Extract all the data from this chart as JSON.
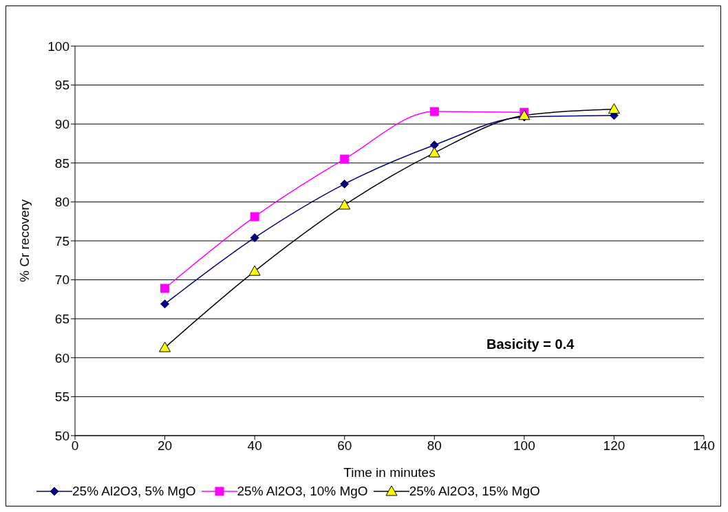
{
  "chart_data": {
    "type": "line",
    "xlabel": "Time in minutes",
    "ylabel": "% Cr recovery",
    "x": [
      20,
      40,
      60,
      80,
      100,
      120
    ],
    "series": [
      {
        "name": "25% Al2O3, 5% MgO",
        "color": "#000080",
        "marker": "diamond",
        "values": [
          66.9,
          75.4,
          82.3,
          87.3,
          90.9,
          91.1
        ]
      },
      {
        "name": "25% Al2O3, 10% MgO",
        "color": "#ff00ff",
        "marker": "square",
        "values": [
          68.9,
          78.1,
          85.5,
          91.6,
          91.5,
          null
        ]
      },
      {
        "name": "25% Al2O3, 15% MgO",
        "color": "#000000",
        "colors": [
          "#ffff00",
          "#ffff00",
          "#ffff00",
          "#ffff00",
          "#ffff00",
          "#ffff00"
        ],
        "marker": "triangle",
        "values": [
          61.3,
          71.1,
          79.6,
          86.3,
          91.1,
          91.9
        ]
      }
    ],
    "xlim": [
      0,
      140
    ],
    "xticks": [
      0,
      20,
      40,
      60,
      80,
      100,
      120,
      140
    ],
    "ylim": [
      50,
      100
    ],
    "yticks": [
      50,
      55,
      60,
      65,
      70,
      75,
      80,
      85,
      90,
      95,
      100
    ],
    "grid": "y",
    "legend": "bottom",
    "line_style": "solid",
    "annotations": [
      "Basicity = 0.4"
    ]
  }
}
